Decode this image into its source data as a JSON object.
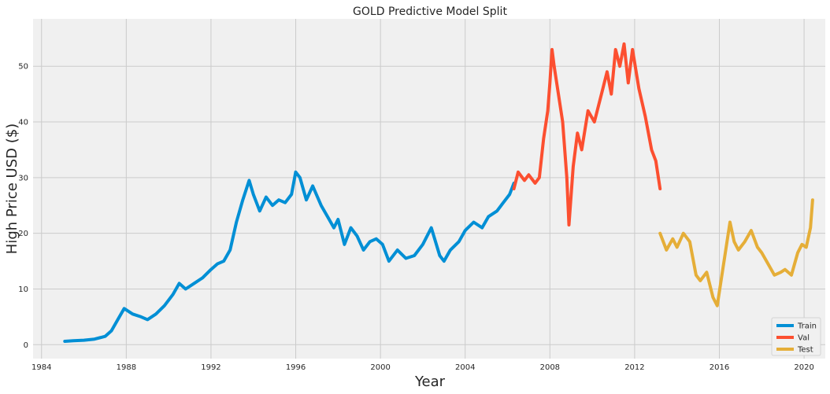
{
  "chart_data": {
    "type": "line",
    "title": "GOLD Predictive Model Split",
    "xlabel": "Year",
    "ylabel": "High Price USD ($)",
    "xlim": [
      1983.6,
      2021.0
    ],
    "ylim": [
      -2.5,
      58.5
    ],
    "xticks": [
      1984,
      1988,
      1992,
      1996,
      2000,
      2004,
      2008,
      2012,
      2016,
      2020
    ],
    "yticks": [
      0,
      10,
      20,
      30,
      40,
      50
    ],
    "grid": true,
    "legend_position": "bottom-right",
    "colors": {
      "Train": "#008fd5",
      "Val": "#fc4f30",
      "Test": "#e5ae38",
      "background": "#f0f0f0",
      "grid": "#cbcbcb"
    },
    "series": [
      {
        "name": "Train",
        "color": "#008fd5",
        "x": [
          1985.1,
          1985.5,
          1986.0,
          1986.5,
          1987.0,
          1987.3,
          1987.6,
          1987.9,
          1988.3,
          1988.7,
          1989.0,
          1989.4,
          1989.8,
          1990.2,
          1990.5,
          1990.8,
          1991.2,
          1991.6,
          1992.0,
          1992.3,
          1992.6,
          1992.9,
          1993.2,
          1993.5,
          1993.8,
          1994.0,
          1994.3,
          1994.6,
          1994.9,
          1995.2,
          1995.5,
          1995.8,
          1996.0,
          1996.2,
          1996.5,
          1996.8,
          1997.2,
          1997.5,
          1997.8,
          1998.0,
          1998.3,
          1998.6,
          1998.9,
          1999.2,
          1999.5,
          1999.8,
          2000.1,
          2000.4,
          2000.8,
          2001.2,
          2001.6,
          2002.0,
          2002.4,
          2002.8,
          2003.0,
          2003.3,
          2003.7,
          2004.0,
          2004.4,
          2004.8,
          2005.1,
          2005.5,
          2005.8,
          2006.1,
          2006.3
        ],
        "y": [
          0.6,
          0.7,
          0.8,
          1.0,
          1.5,
          2.5,
          4.5,
          6.5,
          5.5,
          5.0,
          4.5,
          5.5,
          7.0,
          9.0,
          11.0,
          10.0,
          11.0,
          12.0,
          13.5,
          14.5,
          15.0,
          17.0,
          22.0,
          26.0,
          29.5,
          27.0,
          24.0,
          26.5,
          25.0,
          26.0,
          25.5,
          27.0,
          31.0,
          30.0,
          26.0,
          28.5,
          25.0,
          23.0,
          21.0,
          22.5,
          18.0,
          21.0,
          19.5,
          17.0,
          18.5,
          19.0,
          18.0,
          15.0,
          17.0,
          15.5,
          16.0,
          18.0,
          21.0,
          16.0,
          15.0,
          17.0,
          18.5,
          20.5,
          22.0,
          21.0,
          23.0,
          24.0,
          25.5,
          27.0,
          29.0
        ]
      },
      {
        "name": "Val",
        "color": "#fc4f30",
        "x": [
          2006.3,
          2006.5,
          2006.8,
          2007.0,
          2007.3,
          2007.5,
          2007.7,
          2007.9,
          2008.0,
          2008.1,
          2008.2,
          2008.4,
          2008.6,
          2008.8,
          2008.9,
          2009.1,
          2009.3,
          2009.5,
          2009.8,
          2010.1,
          2010.3,
          2010.5,
          2010.7,
          2010.9,
          2011.1,
          2011.3,
          2011.5,
          2011.7,
          2011.9,
          2012.2,
          2012.5,
          2012.8,
          2013.0,
          2013.2
        ],
        "y": [
          28.0,
          31.0,
          29.5,
          30.5,
          29.0,
          30.0,
          37.0,
          42.0,
          47.0,
          53.0,
          50.0,
          45.0,
          40.0,
          30.0,
          21.5,
          32.0,
          38.0,
          35.0,
          42.0,
          40.0,
          43.0,
          46.0,
          49.0,
          45.0,
          53.0,
          50.0,
          54.0,
          47.0,
          53.0,
          46.0,
          41.0,
          35.0,
          33.0,
          28.0
        ]
      },
      {
        "name": "Test",
        "color": "#e5ae38",
        "x": [
          2013.2,
          2013.5,
          2013.8,
          2014.0,
          2014.3,
          2014.6,
          2014.9,
          2015.1,
          2015.4,
          2015.7,
          2015.9,
          2016.1,
          2016.3,
          2016.5,
          2016.7,
          2016.9,
          2017.2,
          2017.5,
          2017.8,
          2018.0,
          2018.3,
          2018.6,
          2018.9,
          2019.1,
          2019.4,
          2019.7,
          2019.9,
          2020.1,
          2020.3,
          2020.4
        ],
        "y": [
          20.0,
          17.0,
          19.0,
          17.5,
          20.0,
          18.5,
          12.5,
          11.5,
          13.0,
          8.5,
          7.0,
          12.0,
          17.0,
          22.0,
          18.5,
          17.0,
          18.5,
          20.5,
          17.5,
          16.5,
          14.5,
          12.5,
          13.0,
          13.5,
          12.5,
          16.5,
          18.0,
          17.5,
          21.0,
          26.0
        ]
      }
    ]
  }
}
